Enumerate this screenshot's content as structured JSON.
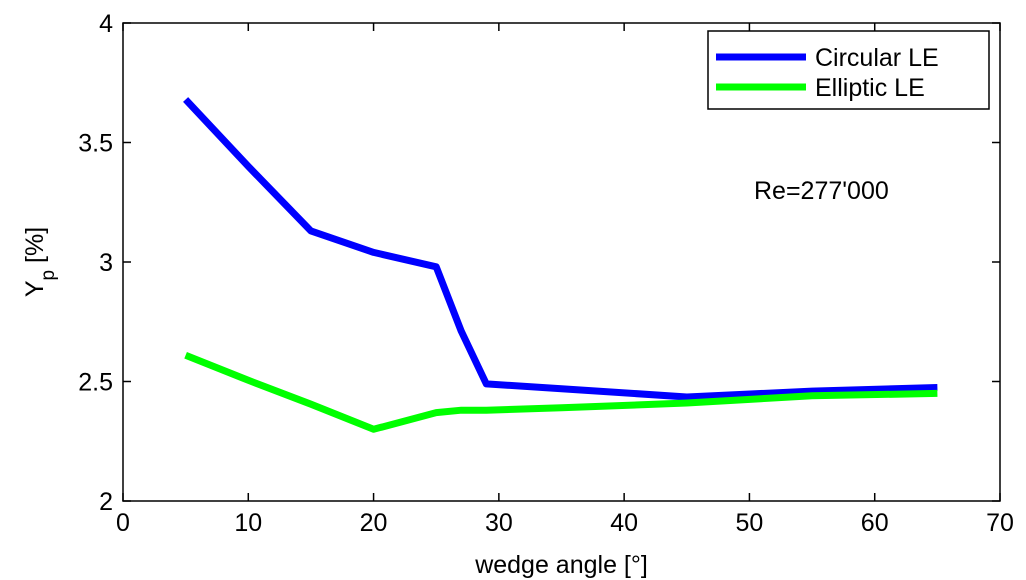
{
  "chart_data": {
    "type": "line",
    "xlabel": "wedge angle [°]",
    "ylabel_main": "Y",
    "ylabel_sub": "p",
    "ylabel_suffix": " [%]",
    "xlim": [
      0,
      70
    ],
    "ylim": [
      2,
      4
    ],
    "x_ticks": [
      0,
      10,
      20,
      30,
      40,
      50,
      60,
      70
    ],
    "y_ticks": [
      2,
      2.5,
      3,
      3.5,
      4
    ],
    "y_tick_labels": [
      "2",
      "2.5",
      "3",
      "3.5",
      "4"
    ],
    "grid": false,
    "legend_position": "top-right",
    "annotation": "Re=277'000",
    "series": [
      {
        "name": "Circular LE",
        "color": "#0000ff",
        "x": [
          5,
          10,
          15,
          20,
          25,
          27,
          29,
          35,
          45,
          55,
          65
        ],
        "y": [
          3.68,
          3.4,
          3.13,
          3.04,
          2.98,
          2.71,
          2.49,
          2.47,
          2.435,
          2.46,
          2.475
        ]
      },
      {
        "name": "Elliptic LE",
        "color": "#00ff00",
        "x": [
          5,
          10,
          15,
          20,
          25,
          27,
          29,
          35,
          45,
          55,
          65
        ],
        "y": [
          2.61,
          2.505,
          2.405,
          2.3,
          2.37,
          2.38,
          2.38,
          2.39,
          2.41,
          2.44,
          2.45
        ]
      }
    ]
  }
}
